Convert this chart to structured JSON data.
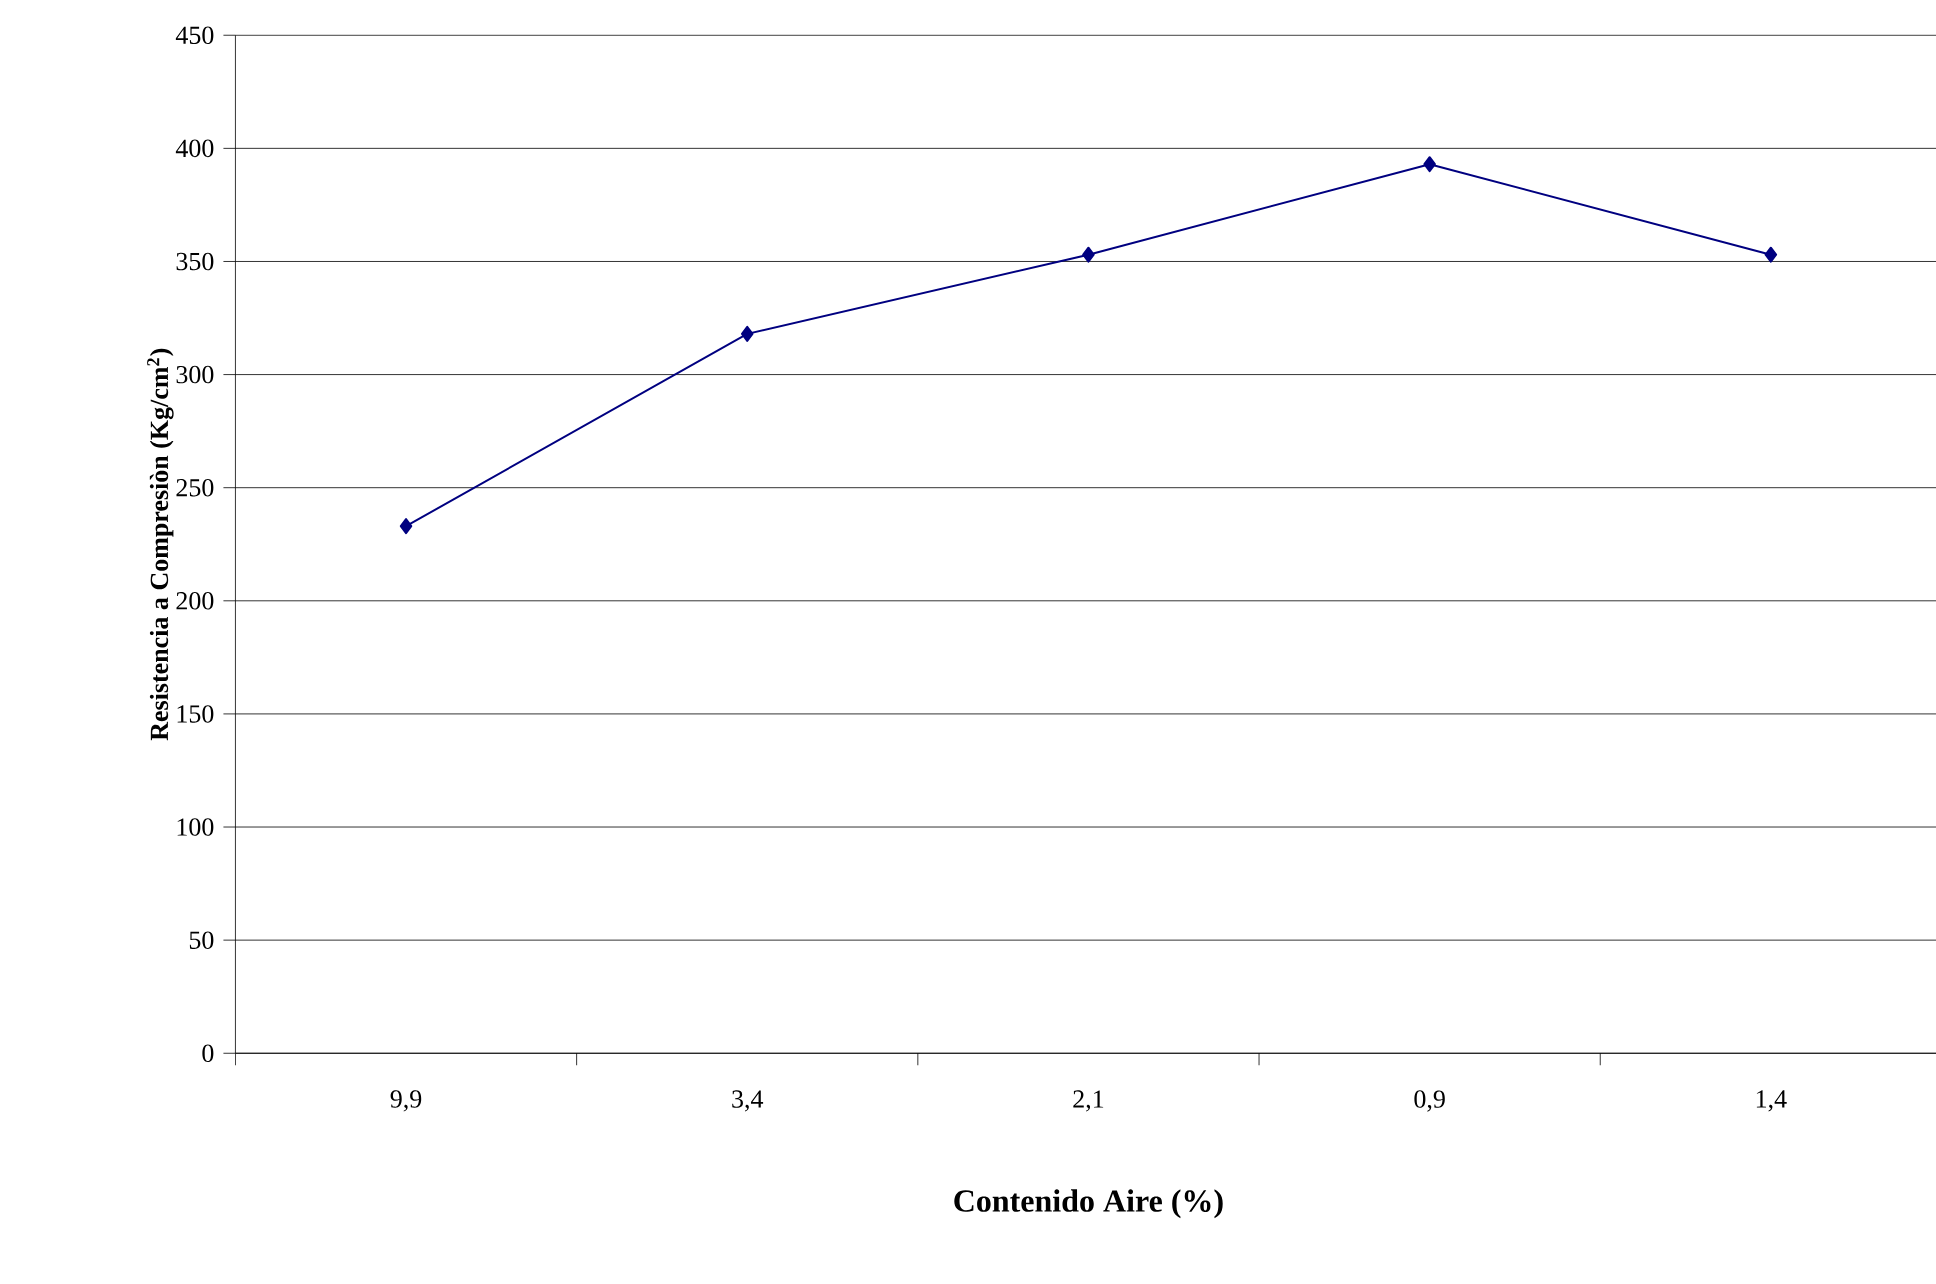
{
  "chart_data": {
    "type": "line",
    "xlabel": "Contenido Aire (%)",
    "ylabel": "Resistencia a Compresiòn (Kg/cm$^{2}$)",
    "categories": [
      "9,9",
      "3,4",
      "2,1",
      "0,9",
      "1,4"
    ],
    "series": [
      {
        "color": "#000080",
        "values": [
          233,
          318,
          353,
          393,
          353
        ]
      }
    ],
    "ylim": [
      0,
      450
    ],
    "yticks": [
      0,
      50,
      100,
      150,
      200,
      250,
      300,
      350,
      400,
      450
    ],
    "grid": "y",
    "marker": "diamond",
    "line_style": "solid"
  }
}
